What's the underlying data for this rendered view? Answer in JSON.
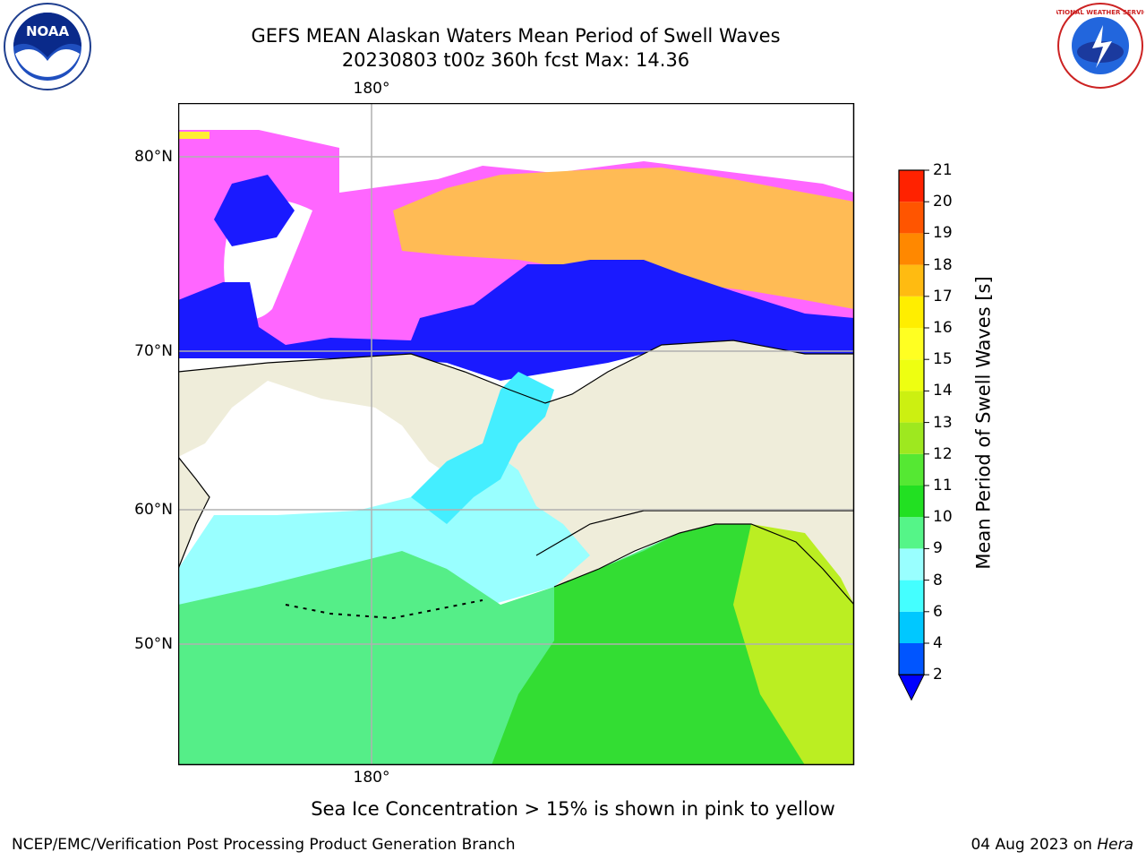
{
  "header": {
    "title_line1": "GEFS MEAN Alaskan Waters Mean Period of Swell Waves",
    "title_line2": "20230803 t00z 360h fcst   Max: 14.36"
  },
  "logos": {
    "left": {
      "icon": "noaa-logo-icon",
      "text": "NOAA"
    },
    "right": {
      "icon": "nws-logo-icon",
      "text": "NATIONAL WEATHER SERVICE"
    }
  },
  "map": {
    "lat_labels": [
      "80°N",
      "70°N",
      "60°N",
      "50°N"
    ],
    "lon_label_top": "180°",
    "lon_label_bottom": "180°",
    "colors": {
      "land": "#efedda",
      "ice_pink": "#ff66ff",
      "ice_orange": "#ffbb55",
      "ice_yellow": "#ffee33",
      "deep_blue": "#1a1aff",
      "cyan": "#44eeff",
      "light_cyan": "#99ffff",
      "green_light": "#55ee88",
      "green": "#33dd33",
      "yellow_green": "#bbee22",
      "gridline": "#b0b0b0"
    }
  },
  "colorbar": {
    "label": "Mean Period of Swell Waves [s]",
    "ticks": [
      "2",
      "4",
      "6",
      "8",
      "9",
      "10",
      "11",
      "12",
      "13",
      "14",
      "15",
      "16",
      "17",
      "18",
      "19",
      "20",
      "21"
    ],
    "colors": [
      "#0055ff",
      "#00c8ff",
      "#44ffff",
      "#99ffff",
      "#55f588",
      "#22e022",
      "#55e833",
      "#9ee81f",
      "#ccf011",
      "#eeff11",
      "#ffff22",
      "#ffee00",
      "#ffbb11",
      "#ff8800",
      "#ff5500",
      "#ff2200",
      "#ff0000"
    ],
    "extend_color": "#0000ff"
  },
  "footer": {
    "ice_note": "Sea Ice Concentration > 15% is shown in pink to yellow",
    "left": "NCEP/EMC/Verification Post Processing Product Generation Branch",
    "right_date": "04 Aug 2023 on ",
    "right_host": "Hera"
  }
}
